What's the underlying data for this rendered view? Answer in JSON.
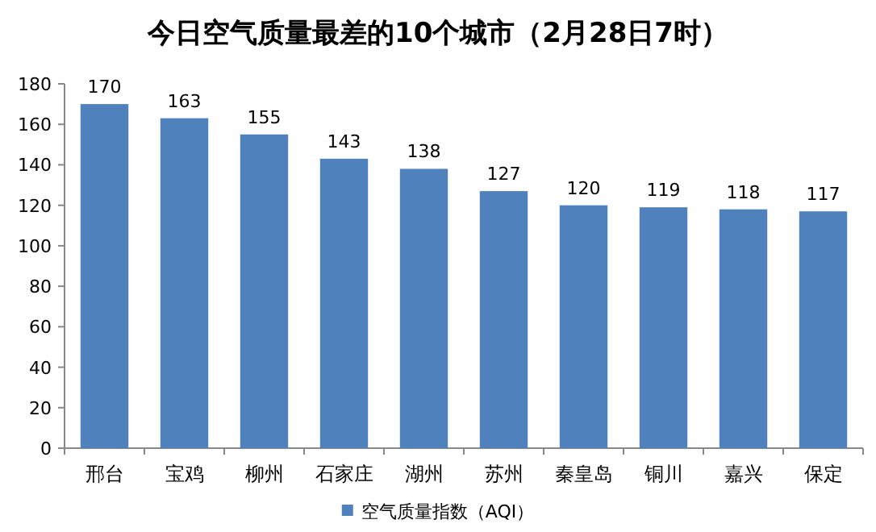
{
  "chart_data": {
    "type": "bar",
    "title": "今日空气质量最差的10个城市（2月28日7时）",
    "categories": [
      "邢台",
      "宝鸡",
      "柳州",
      "石家庄",
      "湖州",
      "苏州",
      "秦皇岛",
      "铜川",
      "嘉兴",
      "保定"
    ],
    "series": [
      {
        "name": "空气质量指数（AQI）",
        "color": "#4f81bd",
        "values": [
          170,
          163,
          155,
          143,
          138,
          127,
          120,
          119,
          118,
          117
        ]
      }
    ],
    "ylim": [
      0,
      180
    ],
    "yticks": [
      0,
      20,
      40,
      60,
      80,
      100,
      120,
      140,
      160,
      180
    ],
    "data_labels": true,
    "legend": "bottom"
  }
}
